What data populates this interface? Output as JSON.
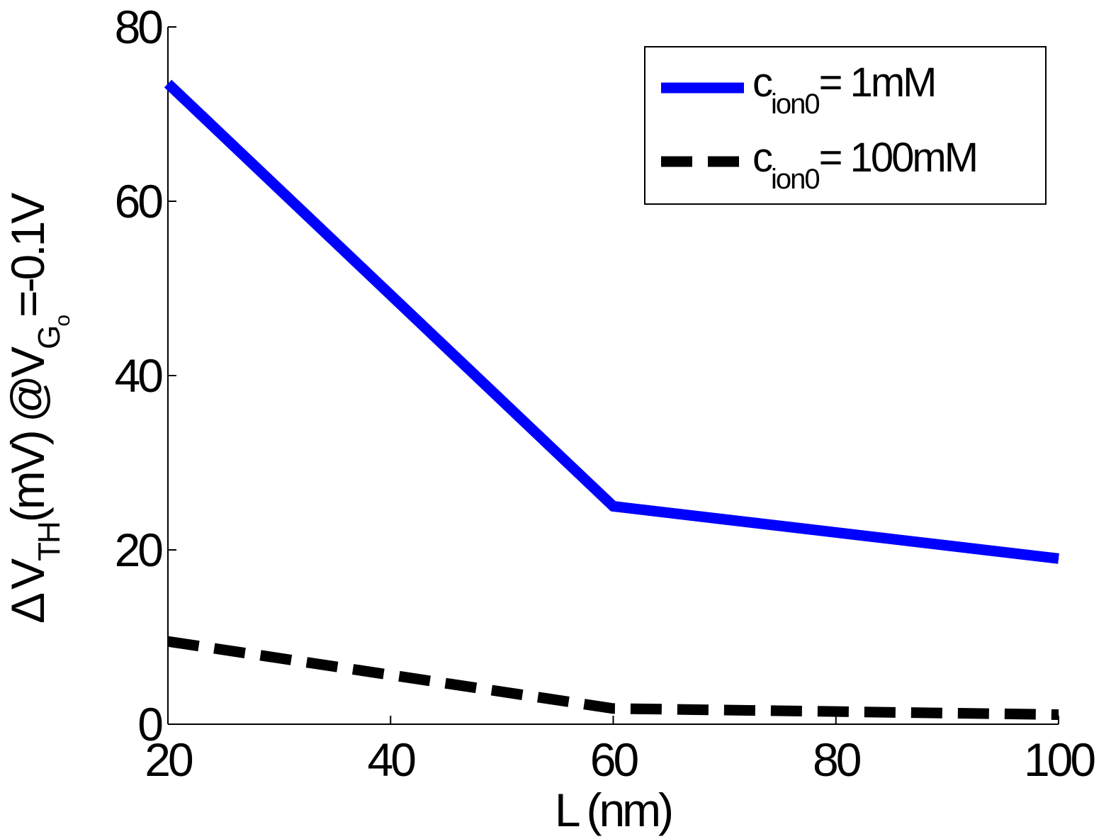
{
  "chart_data": {
    "type": "line",
    "title": "",
    "xlabel": "L (nm)",
    "ylabel": {
      "delta": "Δ",
      "v": "V",
      "v_sub": "TH",
      "unit": "(mV) @V",
      "g_sub": "G",
      "g_subsub": "o",
      "tail": "=-0.1V"
    },
    "xlim": [
      20,
      100
    ],
    "ylim": [
      0,
      80
    ],
    "xticks": [
      20,
      40,
      60,
      80,
      100
    ],
    "yticks": [
      0,
      20,
      40,
      60,
      80
    ],
    "xtick_labels": [
      "20",
      "40",
      "60",
      "80",
      "100"
    ],
    "ytick_labels": [
      "0",
      "20",
      "40",
      "60",
      "80"
    ],
    "grid": false,
    "legend_position": "top-right",
    "series": [
      {
        "name": "c_ion0 = 1mM",
        "legend": {
          "c": "c",
          "sub": "ion0",
          "rest": "= 1mM"
        },
        "color": "#0000ff",
        "style": "solid",
        "x": [
          20,
          60,
          100
        ],
        "y": [
          73.5,
          25,
          19
        ]
      },
      {
        "name": "c_ion0 = 100mM",
        "legend": {
          "c": "c",
          "sub": "ion0",
          "rest": "= 100mM"
        },
        "color": "#000000",
        "style": "dashed",
        "x": [
          20,
          60,
          100
        ],
        "y": [
          9.5,
          1.8,
          1.1
        ]
      }
    ]
  }
}
